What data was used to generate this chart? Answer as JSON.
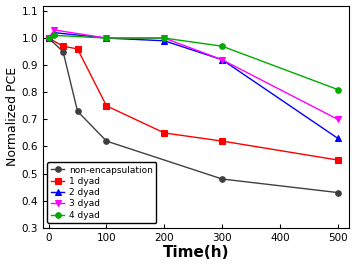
{
  "series": [
    {
      "label": "non-encapsulation",
      "color": "#404040",
      "marker": "o",
      "markersize": 4,
      "x": [
        0,
        25,
        50,
        100,
        300,
        500
      ],
      "y": [
        1.0,
        0.95,
        0.73,
        0.62,
        0.48,
        0.43
      ]
    },
    {
      "label": "1 dyad",
      "color": "#ff0000",
      "marker": "s",
      "markersize": 4,
      "x": [
        0,
        25,
        50,
        100,
        200,
        300,
        500
      ],
      "y": [
        1.0,
        0.97,
        0.96,
        0.75,
        0.65,
        0.62,
        0.55
      ]
    },
    {
      "label": "2 dyad",
      "color": "#0000ff",
      "marker": "^",
      "markersize": 5,
      "x": [
        0,
        10,
        100,
        200,
        300,
        500
      ],
      "y": [
        1.0,
        1.02,
        1.0,
        0.99,
        0.92,
        0.63
      ]
    },
    {
      "label": "3 dyad",
      "color": "#ff00ff",
      "marker": "v",
      "markersize": 5,
      "x": [
        0,
        10,
        100,
        200,
        300,
        500
      ],
      "y": [
        1.0,
        1.03,
        1.0,
        1.0,
        0.92,
        0.7
      ]
    },
    {
      "label": "4 dyad",
      "color": "#00aa00",
      "marker": "o",
      "markersize": 4,
      "x": [
        0,
        10,
        100,
        200,
        300,
        500
      ],
      "y": [
        1.0,
        1.01,
        1.0,
        1.0,
        0.97,
        0.81
      ]
    }
  ],
  "xlabel": "Time(h)",
  "ylabel": "Normalized PCE",
  "xlim": [
    -10,
    520
  ],
  "ylim": [
    0.3,
    1.12
  ],
  "xticks": [
    0,
    100,
    200,
    300,
    400,
    500
  ],
  "yticks": [
    0.3,
    0.4,
    0.5,
    0.6,
    0.7,
    0.8,
    0.9,
    1.0,
    1.1
  ],
  "legend_loc": "lower left",
  "legend_fontsize": 6.5,
  "tick_fontsize": 7.5,
  "xlabel_fontsize": 11,
  "ylabel_fontsize": 9,
  "linewidth": 1.0,
  "markerwidth": 0.8,
  "background_color": "#ffffff"
}
